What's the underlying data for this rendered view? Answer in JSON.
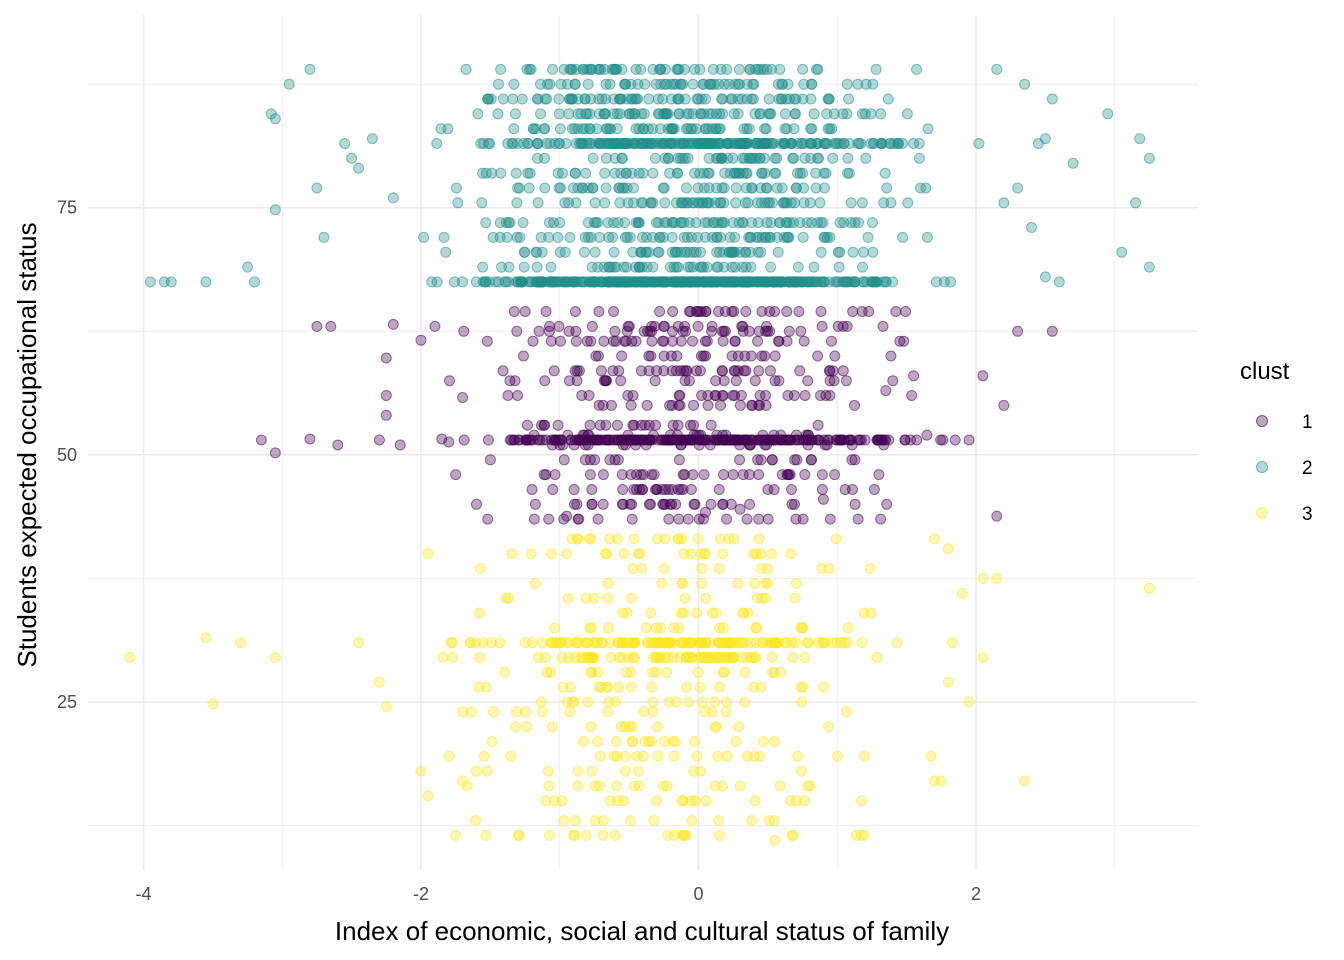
{
  "chart_data": {
    "type": "scatter",
    "title": "",
    "xlabel": "Index of economic, social and cultural status of family",
    "ylabel": "Students expected occupational status",
    "xlim": [
      -4.4,
      3.6
    ],
    "ylim": [
      8.0,
      94.5
    ],
    "x_ticks": [
      -4,
      -2,
      0,
      2
    ],
    "x_tick_labels": [
      "-4",
      "-2",
      "0",
      "2"
    ],
    "y_ticks": [
      25,
      50,
      75
    ],
    "y_tick_labels": [
      "25",
      "50",
      "75"
    ],
    "grid": true,
    "legend": {
      "title": "clust",
      "position": "right"
    },
    "point_opacity": 0.35,
    "series": [
      {
        "name": "1",
        "color": "#440154",
        "y_levels": [
          43.5,
          45,
          46.5,
          48,
          49.5,
          51,
          51.5,
          52,
          53,
          55,
          56,
          57.5,
          58.5,
          60,
          61.5,
          62.5,
          63,
          64.5
        ],
        "points": [
          [
            -3.15,
            51.5
          ],
          [
            -3.05,
            50.2
          ],
          [
            -2.8,
            51.6
          ],
          [
            -2.6,
            51.0
          ],
          [
            -2.25,
            56.0
          ],
          [
            -2.25,
            54.0
          ],
          [
            -2.25,
            59.8
          ],
          [
            -2.3,
            51.5
          ],
          [
            -2.15,
            51.0
          ],
          [
            -2.2,
            63.2
          ],
          [
            -2.0,
            61.6
          ],
          [
            -1.9,
            63.0
          ],
          [
            -1.85,
            51.6
          ],
          [
            -1.8,
            51.3
          ],
          [
            -1.75,
            48.0
          ],
          [
            -1.7,
            55.8
          ],
          [
            -1.6,
            45.0
          ],
          [
            -1.5,
            49.5
          ],
          [
            -1.2,
            46.5
          ],
          [
            -0.95,
            43.8
          ],
          [
            -0.55,
            48.0
          ],
          [
            -0.3,
            46.5
          ],
          [
            0.05,
            44.2
          ],
          [
            0.3,
            44.5
          ],
          [
            0.5,
            46.5
          ],
          [
            0.9,
            45.5
          ],
          [
            1.15,
            43.5
          ],
          [
            1.3,
            48.0
          ],
          [
            1.35,
            56.5
          ],
          [
            1.55,
            58.0
          ],
          [
            1.95,
            51.5
          ],
          [
            2.05,
            58.0
          ],
          [
            2.15,
            43.8
          ],
          [
            2.2,
            55.0
          ],
          [
            2.55,
            62.5
          ],
          [
            2.3,
            62.5
          ],
          [
            -2.65,
            63.0
          ],
          [
            -2.75,
            63.0
          ],
          [
            1.85,
            51.5
          ]
        ]
      },
      {
        "name": "2",
        "color": "#21908C",
        "y_levels": [
          67.5,
          69,
          70.5,
          72,
          73.5,
          75.5,
          77,
          78.5,
          80,
          81.5,
          83,
          84.5,
          86,
          87.5,
          89
        ],
        "points": [
          [
            -3.95,
            67.5
          ],
          [
            -3.85,
            67.5
          ],
          [
            -3.8,
            67.5
          ],
          [
            -3.55,
            67.5
          ],
          [
            -3.25,
            69.0
          ],
          [
            -3.2,
            67.5
          ],
          [
            -3.08,
            84.5
          ],
          [
            -3.05,
            84.0
          ],
          [
            -3.05,
            74.8
          ],
          [
            -2.95,
            87.5
          ],
          [
            -2.8,
            89.0
          ],
          [
            -2.75,
            77.0
          ],
          [
            -2.7,
            72.0
          ],
          [
            -2.55,
            81.5
          ],
          [
            -2.5,
            80.0
          ],
          [
            -2.45,
            79.0
          ],
          [
            -2.35,
            82.0
          ],
          [
            -2.2,
            76.0
          ],
          [
            2.15,
            89.0
          ],
          [
            2.2,
            75.5
          ],
          [
            2.3,
            77.0
          ],
          [
            2.4,
            73.0
          ],
          [
            2.35,
            87.5
          ],
          [
            2.45,
            81.5
          ],
          [
            2.5,
            68.0
          ],
          [
            2.5,
            82.0
          ],
          [
            2.55,
            86.0
          ],
          [
            2.6,
            67.5
          ],
          [
            2.7,
            79.5
          ],
          [
            2.95,
            84.5
          ],
          [
            3.05,
            70.5
          ],
          [
            3.15,
            75.5
          ],
          [
            3.18,
            82.0
          ],
          [
            3.25,
            69.0
          ],
          [
            3.25,
            80.0
          ]
        ]
      },
      {
        "name": "3",
        "color": "#FDE725",
        "y_levels": [
          11.5,
          13,
          15,
          16.5,
          18,
          19.5,
          21,
          22.5,
          24,
          25,
          26.5,
          28,
          29.5,
          31,
          32.5,
          34,
          35.5,
          37,
          38.5,
          40,
          41.5
        ],
        "points": [
          [
            -4.1,
            29.5
          ],
          [
            -3.55,
            31.5
          ],
          [
            -3.5,
            24.8
          ],
          [
            -3.3,
            31.0
          ],
          [
            -3.05,
            29.5
          ],
          [
            -2.45,
            31.0
          ],
          [
            -2.3,
            27.0
          ],
          [
            -2.25,
            24.5
          ],
          [
            -2.0,
            18.0
          ],
          [
            -1.95,
            15.5
          ],
          [
            -1.75,
            11.5
          ],
          [
            -1.7,
            17.0
          ],
          [
            1.8,
            40.5
          ],
          [
            1.7,
            41.5
          ],
          [
            1.9,
            36.0
          ],
          [
            2.05,
            37.5
          ],
          [
            2.15,
            37.5
          ],
          [
            2.05,
            29.5
          ],
          [
            1.95,
            25.0
          ],
          [
            1.8,
            27.0
          ],
          [
            1.7,
            17.0
          ],
          [
            1.75,
            17.0
          ],
          [
            2.35,
            17.0
          ],
          [
            3.25,
            36.5
          ],
          [
            -1.95,
            40.0
          ],
          [
            -0.95,
            40.0
          ],
          [
            0.05,
            40.0
          ],
          [
            0.45,
            40.0
          ],
          [
            -0.6,
            11.5
          ],
          [
            0.55,
            11.0
          ]
        ]
      }
    ]
  }
}
